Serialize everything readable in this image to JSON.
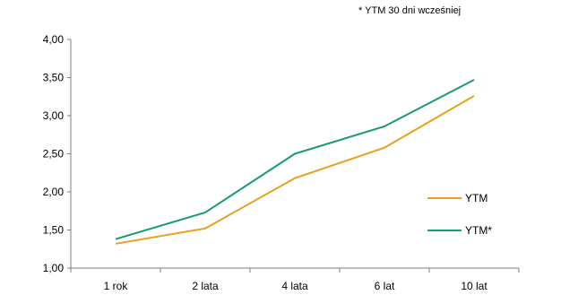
{
  "chart_data": {
    "type": "line",
    "note": "* YTM 30 dni wcześniej",
    "categories": [
      "1 rok",
      "2 lata",
      "4 lata",
      "6 lat",
      "10 lat"
    ],
    "series": [
      {
        "name": "YTM",
        "color": "#E8A021",
        "values": [
          1.32,
          1.52,
          2.18,
          2.58,
          3.26
        ]
      },
      {
        "name": "YTM*",
        "color": "#1A9A73",
        "values": [
          1.38,
          1.73,
          2.5,
          2.86,
          3.47
        ]
      }
    ],
    "ylim": [
      1.0,
      4.0
    ],
    "yticks": [
      "1,00",
      "1,50",
      "2,00",
      "2,50",
      "3,00",
      "3,50",
      "4,00"
    ],
    "ytick_values": [
      1.0,
      1.5,
      2.0,
      2.5,
      3.0,
      3.5,
      4.0
    ],
    "grid": false,
    "legend_position": "right"
  }
}
